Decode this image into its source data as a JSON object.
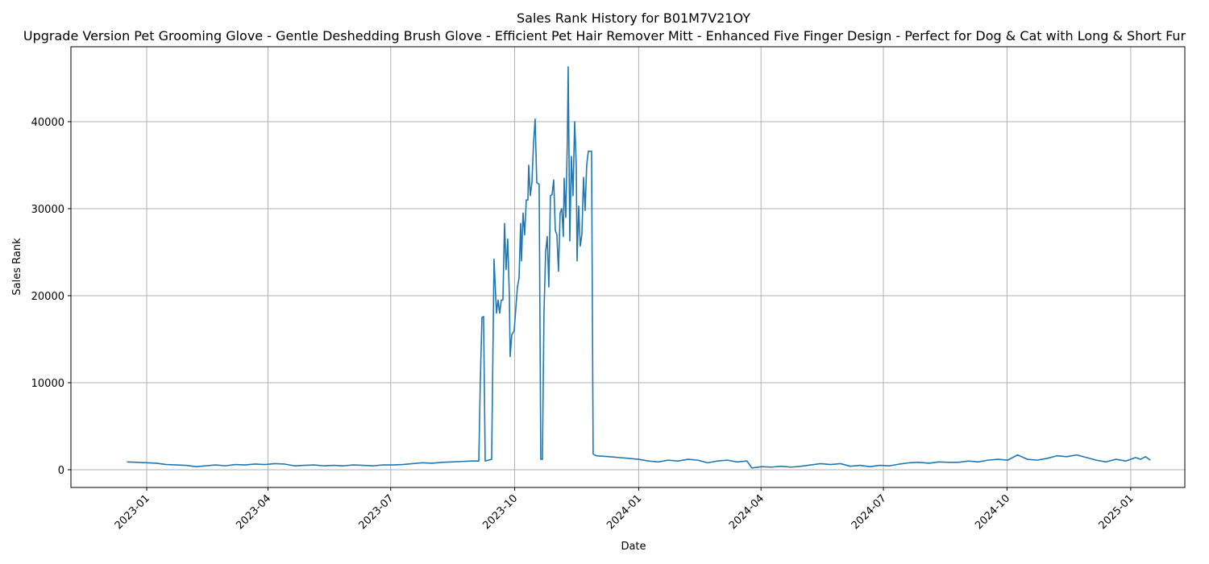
{
  "chart_data": {
    "type": "line",
    "title": "Sales Rank History for B01M7V21OY",
    "subtitle": "Upgrade Version Pet Grooming Glove - Gentle Deshedding Brush Glove - Efficient Pet Hair Remover Mitt - Enhanced Five Finger Design - Perfect for Dog & Cat with Long & Short Fur",
    "x_label": "Date",
    "y_label": "Sales Rank",
    "color": "#1f77b4",
    "grid": true,
    "xlim": [
      2022.846,
      2025.11
    ],
    "ylim": [
      -2037,
      48611
    ],
    "xticks": [
      {
        "value": 2023.0,
        "label": "2023-01"
      },
      {
        "value": 2023.2466,
        "label": "2023-04"
      },
      {
        "value": 2023.4959,
        "label": "2023-07"
      },
      {
        "value": 2023.7479,
        "label": "2023-10"
      },
      {
        "value": 2024.0,
        "label": "2024-01"
      },
      {
        "value": 2024.2486,
        "label": "2024-04"
      },
      {
        "value": 2024.4973,
        "label": "2024-07"
      },
      {
        "value": 2024.7486,
        "label": "2024-10"
      },
      {
        "value": 2025.0,
        "label": "2025-01"
      }
    ],
    "yticks": [
      0,
      10000,
      20000,
      30000,
      40000
    ],
    "x": [
      2022.96,
      2022.98,
      2023.0,
      2023.02,
      2023.04,
      2023.06,
      2023.08,
      2023.1,
      2023.12,
      2023.14,
      2023.16,
      2023.18,
      2023.2,
      2023.22,
      2023.24,
      2023.26,
      2023.28,
      2023.3,
      2023.32,
      2023.34,
      2023.36,
      2023.38,
      2023.4,
      2023.42,
      2023.44,
      2023.46,
      2023.48,
      2023.5,
      2023.52,
      2023.54,
      2023.56,
      2023.58,
      2023.6,
      2023.62,
      2023.64,
      2023.66,
      2023.675,
      2023.678,
      2023.6814,
      2023.6847,
      2023.688,
      2023.6945,
      2023.7011,
      2023.706,
      2023.7109,
      2023.7142,
      2023.7174,
      2023.7207,
      2023.724,
      2023.7273,
      2023.7305,
      2023.7338,
      2023.7371,
      2023.7387,
      2023.742,
      2023.7469,
      2023.7535,
      2023.7568,
      2023.76,
      2023.7617,
      2023.7649,
      2023.7682,
      2023.7715,
      2023.7748,
      2023.7764,
      2023.7797,
      2023.783,
      2023.7862,
      2023.7895,
      2023.7928,
      2023.7977,
      2023.801,
      2023.8043,
      2023.8075,
      2023.8108,
      2023.8141,
      2023.8174,
      2023.8206,
      2023.8239,
      2023.8272,
      2023.8305,
      2023.8337,
      2023.837,
      2023.8403,
      2023.8436,
      2023.8468,
      2023.8485,
      2023.8518,
      2023.855,
      2023.8567,
      2023.86,
      2023.8632,
      2023.8665,
      2023.8698,
      2023.8731,
      2023.8747,
      2023.878,
      2023.8812,
      2023.8845,
      2023.8878,
      2023.8911,
      2023.8943,
      2023.8976,
      2023.9042,
      2023.9074,
      2023.914,
      2023.94,
      2023.96,
      2023.98,
      2024.0,
      2024.02,
      2024.04,
      2024.06,
      2024.08,
      2024.1,
      2024.12,
      2024.14,
      2024.16,
      2024.18,
      2024.2,
      2024.22,
      2024.23,
      2024.25,
      2024.27,
      2024.29,
      2024.31,
      2024.33,
      2024.35,
      2024.37,
      2024.39,
      2024.41,
      2024.43,
      2024.45,
      2024.47,
      2024.49,
      2024.51,
      2024.53,
      2024.55,
      2024.57,
      2024.59,
      2024.61,
      2024.63,
      2024.65,
      2024.67,
      2024.69,
      2024.71,
      2024.73,
      2024.75,
      2024.77,
      2024.79,
      2024.81,
      2024.83,
      2024.85,
      2024.87,
      2024.89,
      2024.91,
      2024.93,
      2024.95,
      2024.97,
      2024.99,
      2025.01,
      2025.02,
      2025.03,
      2025.04
    ],
    "values": [
      900,
      850,
      800,
      750,
      600,
      550,
      500,
      350,
      450,
      550,
      450,
      600,
      550,
      650,
      600,
      700,
      650,
      450,
      500,
      550,
      450,
      500,
      450,
      550,
      500,
      450,
      550,
      550,
      600,
      700,
      800,
      750,
      850,
      900,
      950,
      1000,
      1000,
      10000,
      17500,
      17600,
      1000,
      1100,
      1200,
      24200,
      18000,
      19500,
      18000,
      19500,
      19500,
      28300,
      23000,
      26500,
      20000,
      13000,
      15500,
      16000,
      21000,
      22000,
      28300,
      24000,
      29500,
      27000,
      31000,
      31000,
      35000,
      31500,
      33000,
      37500,
      40300,
      33000,
      32800,
      1200,
      1200,
      18000,
      25000,
      26800,
      21000,
      31500,
      31600,
      33300,
      27500,
      27000,
      22800,
      29500,
      30000,
      26800,
      33500,
      29000,
      38000,
      46300,
      26300,
      36000,
      31500,
      40000,
      35000,
      24000,
      30300,
      25700,
      27000,
      33600,
      29800,
      35000,
      36600,
      36600,
      1800,
      1600,
      1500,
      1400,
      1300,
      1200,
      1000,
      900,
      1100,
      1000,
      1200,
      1100,
      800,
      1000,
      1100,
      900,
      1000,
      200,
      350,
      300,
      400,
      300,
      400,
      550,
      700,
      600,
      700,
      400,
      500,
      350,
      500,
      450,
      650,
      800,
      850,
      750,
      900,
      850,
      850,
      1000,
      900,
      1100,
      1200,
      1100,
      1700,
      1200,
      1100,
      1300,
      1600,
      1500,
      1700,
      1400,
      1100,
      900,
      1200,
      1000,
      1400,
      1200,
      1500,
      1100
    ]
  }
}
